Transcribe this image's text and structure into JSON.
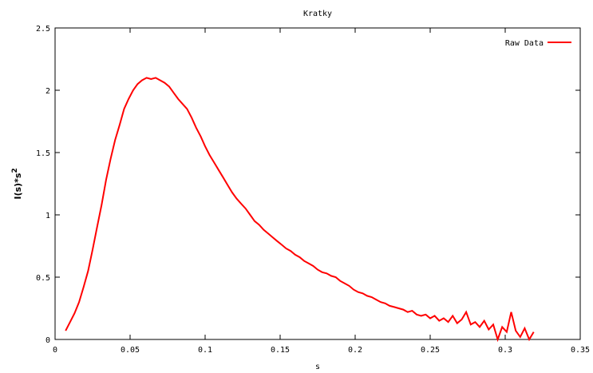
{
  "chart_data": {
    "type": "line",
    "title": "Kratky",
    "xlabel": "s",
    "ylabel_main": "I(s)*s",
    "ylabel_sup": "2",
    "xlim": [
      0,
      0.35
    ],
    "ylim": [
      0,
      2.5
    ],
    "x_ticks": [
      "0",
      "0.05",
      "0.1",
      "0.15",
      "0.2",
      "0.25",
      "0.3",
      "0.35"
    ],
    "y_ticks": [
      "0",
      "0.5",
      "1",
      "1.5",
      "2",
      "2.5"
    ],
    "x_tick_values": [
      0,
      0.05,
      0.1,
      0.15,
      0.2,
      0.25,
      0.3,
      0.35
    ],
    "y_tick_values": [
      0,
      0.5,
      1,
      1.5,
      2,
      2.5
    ],
    "grid": false,
    "legend_position": "top-right",
    "series": [
      {
        "name": "Raw Data",
        "color": "#ff0000",
        "x": [
          0.007,
          0.01,
          0.013,
          0.016,
          0.019,
          0.022,
          0.025,
          0.028,
          0.031,
          0.034,
          0.037,
          0.04,
          0.043,
          0.046,
          0.049,
          0.052,
          0.055,
          0.058,
          0.061,
          0.064,
          0.067,
          0.07,
          0.073,
          0.076,
          0.079,
          0.082,
          0.085,
          0.088,
          0.091,
          0.094,
          0.097,
          0.1,
          0.103,
          0.106,
          0.109,
          0.112,
          0.115,
          0.118,
          0.121,
          0.124,
          0.127,
          0.13,
          0.133,
          0.136,
          0.139,
          0.142,
          0.145,
          0.148,
          0.151,
          0.154,
          0.157,
          0.16,
          0.163,
          0.166,
          0.169,
          0.172,
          0.175,
          0.178,
          0.181,
          0.184,
          0.187,
          0.19,
          0.193,
          0.196,
          0.199,
          0.202,
          0.205,
          0.208,
          0.211,
          0.214,
          0.217,
          0.22,
          0.223,
          0.226,
          0.229,
          0.232,
          0.235,
          0.238,
          0.241,
          0.244,
          0.247,
          0.25,
          0.253,
          0.256,
          0.259,
          0.262,
          0.265,
          0.268,
          0.271,
          0.274,
          0.277,
          0.28,
          0.283,
          0.286,
          0.289,
          0.292,
          0.295,
          0.298,
          0.301,
          0.304,
          0.307,
          0.31,
          0.313,
          0.316,
          0.319
        ],
        "y": [
          0.07,
          0.14,
          0.21,
          0.3,
          0.42,
          0.55,
          0.72,
          0.9,
          1.08,
          1.28,
          1.45,
          1.6,
          1.72,
          1.85,
          1.93,
          2.0,
          2.05,
          2.08,
          2.1,
          2.09,
          2.1,
          2.08,
          2.06,
          2.03,
          1.98,
          1.93,
          1.89,
          1.85,
          1.78,
          1.7,
          1.63,
          1.55,
          1.48,
          1.42,
          1.36,
          1.3,
          1.24,
          1.18,
          1.13,
          1.09,
          1.05,
          1.0,
          0.95,
          0.92,
          0.88,
          0.85,
          0.82,
          0.79,
          0.76,
          0.73,
          0.71,
          0.68,
          0.66,
          0.63,
          0.61,
          0.59,
          0.56,
          0.54,
          0.53,
          0.51,
          0.5,
          0.47,
          0.45,
          0.43,
          0.4,
          0.38,
          0.37,
          0.35,
          0.34,
          0.32,
          0.3,
          0.29,
          0.27,
          0.26,
          0.25,
          0.24,
          0.22,
          0.23,
          0.2,
          0.19,
          0.2,
          0.17,
          0.19,
          0.15,
          0.17,
          0.14,
          0.19,
          0.13,
          0.16,
          0.22,
          0.12,
          0.14,
          0.1,
          0.15,
          0.08,
          0.12,
          0.0,
          0.1,
          0.06,
          0.22,
          0.07,
          0.02,
          0.09,
          0.0,
          0.06
        ]
      }
    ]
  }
}
